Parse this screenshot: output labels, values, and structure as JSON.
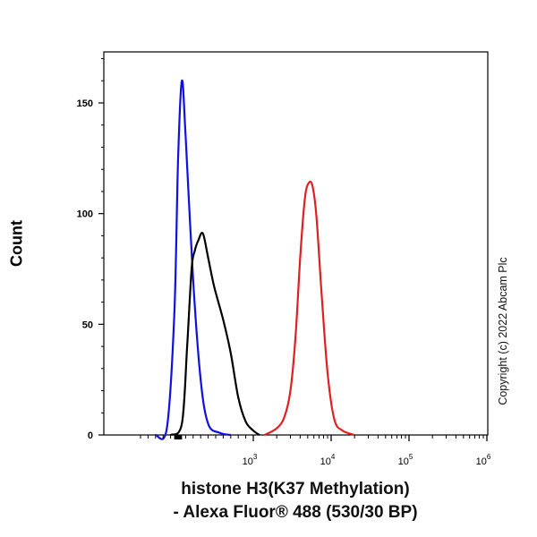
{
  "chart_data": {
    "type": "line",
    "title": "",
    "xlabel_line1": "histone H3(K37 Methylation)",
    "xlabel_line2": "- Alexa Fluor® 488 (530/30 BP)",
    "ylabel": "Count",
    "x_scale": "biexponential",
    "xlim": [
      -600,
      1000000
    ],
    "ylim": [
      0,
      172
    ],
    "x_major_ticks": [
      {
        "value": 1000,
        "base": "10",
        "exp": "3"
      },
      {
        "value": 10000,
        "base": "10",
        "exp": "4"
      },
      {
        "value": 100000,
        "base": "10",
        "exp": "5"
      },
      {
        "value": 1000000,
        "base": "10",
        "exp": "6"
      }
    ],
    "y_ticks": [
      0,
      50,
      100,
      150
    ],
    "grid": false,
    "legend": "none",
    "series": [
      {
        "color": "#1010e0",
        "x": [
          -300,
          -150,
          -50,
          0,
          50,
          100,
          200,
          300,
          400,
          550,
          700
        ],
        "y": [
          0,
          3,
          55,
          125,
          160,
          135,
          70,
          25,
          5,
          1,
          0
        ]
      },
      {
        "color": "#000000",
        "x": [
          -100,
          50,
          120,
          180,
          220,
          270,
          330,
          400,
          480,
          600,
          700,
          800,
          900,
          1000,
          1200
        ],
        "y": [
          0,
          5,
          40,
          75,
          83,
          88,
          91,
          80,
          67,
          52,
          37,
          17,
          6,
          2,
          0
        ]
      },
      {
        "color": "#e02020",
        "x": [
          1400,
          2000,
          2500,
          3000,
          3500,
          4000,
          4600,
          5200,
          5800,
          6500,
          7500,
          9000,
          11000,
          14000,
          20000
        ],
        "y": [
          0,
          3,
          8,
          20,
          45,
          80,
          107,
          114,
          112,
          98,
          65,
          28,
          7,
          2,
          0
        ]
      }
    ]
  },
  "copyright": "Copyright (c) 2022 Abcam Plc"
}
